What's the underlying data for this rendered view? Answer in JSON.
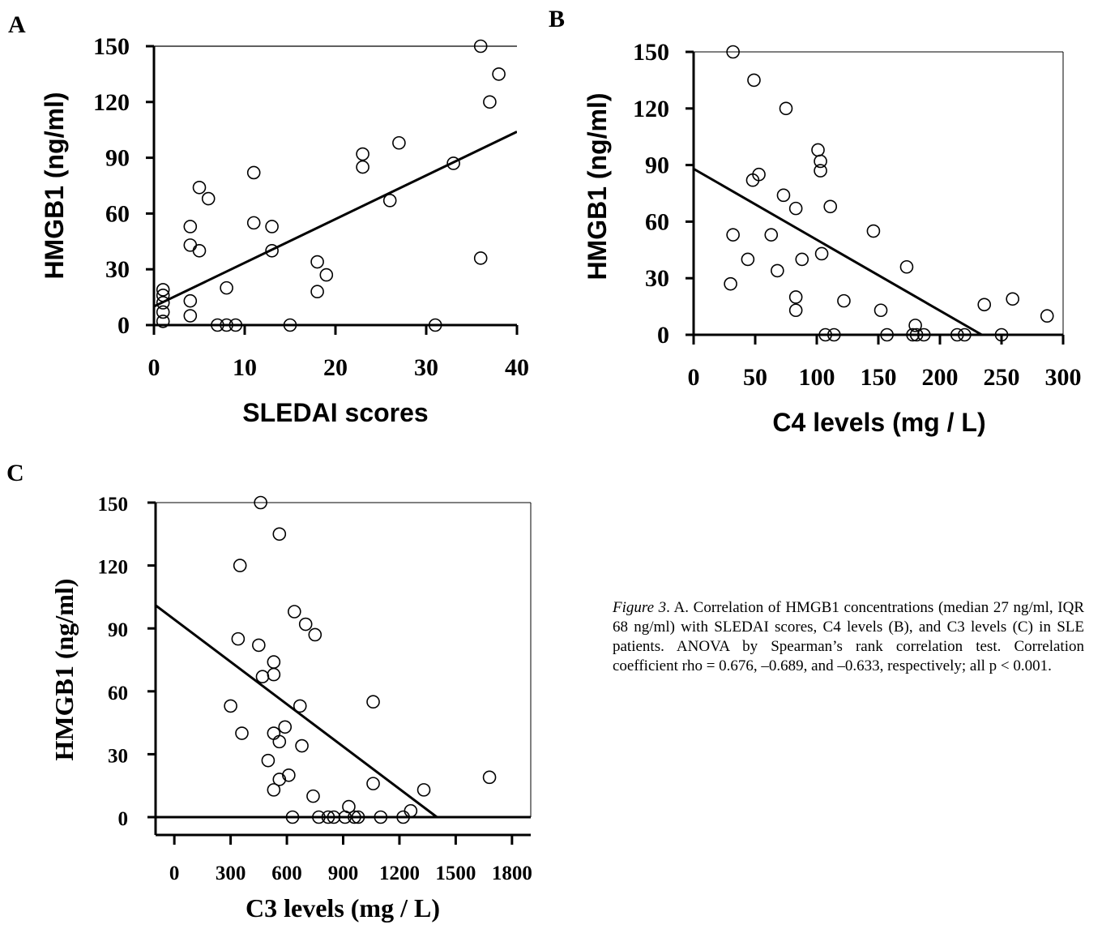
{
  "caption": {
    "figure_label": "Figure 3",
    "text": ". A. Correlation of HMGB1 concentrations (median 27 ng/ml, IQR 68 ng/ml) with SLEDAI scores, C4 levels (B), and C3 levels (C) in SLE patients. ANOVA by Spearman’s rank correlation test. Correlation coefficient rho = 0.676, –0.689, and –0.633, respectively; all p < 0.001."
  },
  "chart_data": [
    {
      "panel": "A",
      "type": "scatter",
      "xlabel": "SLEDAI   scores",
      "ylabel": "HMGB1 (ng/ml)",
      "xlim": [
        0,
        40
      ],
      "ylim": [
        0,
        150
      ],
      "xticks": [
        "0",
        "10",
        "20",
        "30",
        "40"
      ],
      "yticks": [
        "0",
        "30",
        "60",
        "90",
        "120",
        "150"
      ],
      "points": [
        [
          1,
          19
        ],
        [
          1,
          16
        ],
        [
          1,
          12
        ],
        [
          1,
          7
        ],
        [
          1,
          2
        ],
        [
          4,
          53
        ],
        [
          4,
          43
        ],
        [
          4,
          13
        ],
        [
          4,
          5
        ],
        [
          5,
          74
        ],
        [
          5,
          40
        ],
        [
          6,
          68
        ],
        [
          7,
          0
        ],
        [
          8,
          20
        ],
        [
          8,
          0
        ],
        [
          9,
          0
        ],
        [
          11,
          82
        ],
        [
          11,
          55
        ],
        [
          13,
          53
        ],
        [
          13,
          40
        ],
        [
          15,
          0
        ],
        [
          18,
          34
        ],
        [
          18,
          18
        ],
        [
          19,
          27
        ],
        [
          23,
          92
        ],
        [
          23,
          85
        ],
        [
          26,
          67
        ],
        [
          27,
          98
        ],
        [
          31,
          0
        ],
        [
          33,
          87
        ],
        [
          36,
          150
        ],
        [
          36,
          36
        ],
        [
          37,
          120
        ],
        [
          38,
          135
        ]
      ],
      "trendline": [
        [
          0,
          10
        ],
        [
          40,
          104
        ]
      ]
    },
    {
      "panel": "B",
      "type": "scatter",
      "xlabel": "C4  levels (mg / L)",
      "ylabel": "HMGB1 (ng/ml)",
      "xlim": [
        0,
        300
      ],
      "ylim": [
        0,
        150
      ],
      "xticks": [
        "0",
        "50",
        "100",
        "150",
        "200",
        "250",
        "300"
      ],
      "yticks": [
        "0",
        "30",
        "60",
        "90",
        "120",
        "150"
      ],
      "points": [
        [
          32,
          150
        ],
        [
          49,
          135
        ],
        [
          75,
          120
        ],
        [
          101,
          98
        ],
        [
          103,
          92
        ],
        [
          103,
          87
        ],
        [
          53,
          85
        ],
        [
          48,
          82
        ],
        [
          73,
          74
        ],
        [
          111,
          68
        ],
        [
          83,
          67
        ],
        [
          146,
          55
        ],
        [
          32,
          53
        ],
        [
          63,
          53
        ],
        [
          104,
          43
        ],
        [
          44,
          40
        ],
        [
          88,
          40
        ],
        [
          173,
          36
        ],
        [
          68,
          34
        ],
        [
          30,
          27
        ],
        [
          83,
          20
        ],
        [
          122,
          18
        ],
        [
          83,
          13
        ],
        [
          152,
          13
        ],
        [
          259,
          19
        ],
        [
          236,
          16
        ],
        [
          287,
          10
        ],
        [
          180,
          5
        ],
        [
          107,
          0
        ],
        [
          114,
          0
        ],
        [
          157,
          0
        ],
        [
          178,
          0
        ],
        [
          181,
          0
        ],
        [
          187,
          0
        ],
        [
          214,
          0
        ],
        [
          220,
          0
        ],
        [
          250,
          0
        ]
      ],
      "trendline": [
        [
          0,
          88
        ],
        [
          234,
          0
        ]
      ]
    },
    {
      "panel": "C",
      "type": "scatter",
      "xlabel": "C3 levels (mg / L)",
      "ylabel": "HMGB1 (ng/ml)",
      "xlim": [
        -100,
        1900
      ],
      "ylim": [
        0,
        150
      ],
      "xticks": [
        "0",
        "300",
        "600",
        "900",
        "1200",
        "1500",
        "1800"
      ],
      "yticks": [
        "0",
        "30",
        "60",
        "90",
        "120",
        "150"
      ],
      "points": [
        [
          460,
          150
        ],
        [
          560,
          135
        ],
        [
          350,
          120
        ],
        [
          640,
          98
        ],
        [
          700,
          92
        ],
        [
          750,
          87
        ],
        [
          340,
          85
        ],
        [
          450,
          82
        ],
        [
          530,
          74
        ],
        [
          470,
          67
        ],
        [
          530,
          68
        ],
        [
          300,
          53
        ],
        [
          670,
          53
        ],
        [
          1060,
          55
        ],
        [
          590,
          43
        ],
        [
          360,
          40
        ],
        [
          530,
          40
        ],
        [
          560,
          36
        ],
        [
          680,
          34
        ],
        [
          500,
          27
        ],
        [
          610,
          20
        ],
        [
          560,
          18
        ],
        [
          1060,
          16
        ],
        [
          1680,
          19
        ],
        [
          530,
          13
        ],
        [
          1330,
          13
        ],
        [
          740,
          10
        ],
        [
          930,
          5
        ],
        [
          1260,
          3
        ],
        [
          630,
          0
        ],
        [
          770,
          0
        ],
        [
          820,
          0
        ],
        [
          850,
          0
        ],
        [
          910,
          0
        ],
        [
          960,
          0
        ],
        [
          980,
          0
        ],
        [
          1100,
          0
        ],
        [
          1220,
          0
        ]
      ],
      "trendline": [
        [
          -100,
          101
        ],
        [
          1400,
          0
        ]
      ]
    }
  ]
}
